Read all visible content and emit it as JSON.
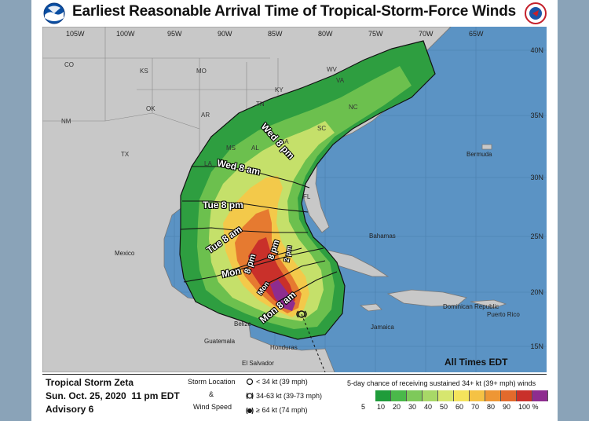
{
  "header": {
    "title": "Earliest Reasonable Arrival Time of Tropical-Storm-Force Winds",
    "left_logo": "noaa-logo",
    "right_logo": "nws-logo"
  },
  "map": {
    "lon_labels": [
      "105W",
      "100W",
      "95W",
      "90W",
      "85W",
      "80W",
      "75W",
      "70W",
      "65W"
    ],
    "lat_labels": [
      "40N",
      "35N",
      "30N",
      "25N",
      "20N",
      "15N"
    ],
    "state_labels": [
      "CO",
      "KS",
      "MO",
      "OK",
      "NM",
      "TX",
      "AR",
      "MS",
      "AL",
      "LA",
      "TN",
      "KY",
      "WV",
      "VA",
      "NC",
      "SC",
      "GA",
      "FL"
    ],
    "place_labels": [
      "Bermuda",
      "Bahamas",
      "Mexico",
      "Cuba",
      "Jamaica",
      "Belize",
      "Guatemala",
      "Honduras",
      "El Salvador",
      "Dominican Republic",
      "Puerto Rico"
    ],
    "time_labels": [
      "Wed 8 pm",
      "Wed 8 am",
      "Tue 8 pm",
      "Tue 8 am",
      "8 pm",
      "Mon",
      "8 pm",
      "2 pm",
      "Mon",
      "Mon 8 am"
    ],
    "timezone_note": "All Times EDT",
    "colors": {
      "ocean": "#5b93c4",
      "land": "#c8c8c8",
      "outline": "#111111"
    }
  },
  "footer": {
    "storm_name": "Tropical Storm Zeta",
    "date": "Sun. Oct. 25, 2020  11 pm EDT",
    "advisory": "Advisory 6",
    "legend_title_1": "Storm Location",
    "legend_amp": "&",
    "legend_title_2": "Wind Speed",
    "wind_items": [
      "< 34 kt (39 mph)",
      "34-63 kt (39-73 mph)",
      "≥ 64 kt (74 mph)"
    ],
    "prob_title": "5-day chance of receiving sustained 34+ kt (39+ mph) winds",
    "prob_labels": [
      "5",
      "10",
      "20",
      "30",
      "40",
      "50",
      "60",
      "70",
      "80",
      "90",
      "100 %"
    ],
    "prob_colors": [
      "#1f9c3a",
      "#4ab84a",
      "#7ec95a",
      "#a8d867",
      "#d6e66e",
      "#f4e35c",
      "#f5c244",
      "#ee9634",
      "#e26a2c",
      "#c9302a",
      "#8e2c8f"
    ]
  }
}
